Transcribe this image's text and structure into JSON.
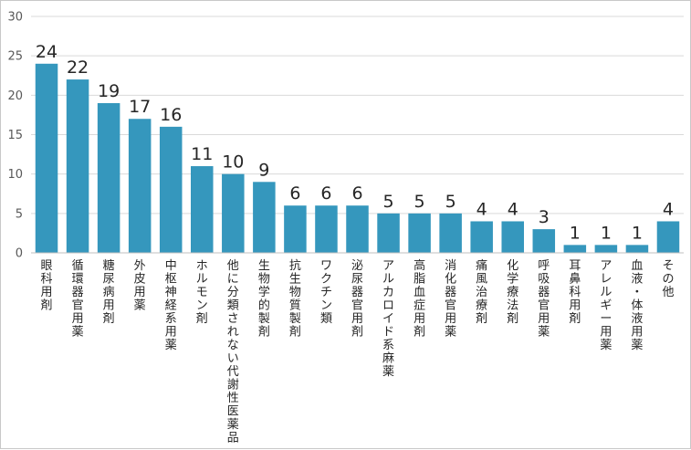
{
  "chart_data": {
    "type": "bar",
    "title": "",
    "xlabel": "",
    "ylabel": "",
    "ylim": [
      0,
      30
    ],
    "yticks": [
      0,
      5,
      10,
      15,
      20,
      25,
      30
    ],
    "grid": true,
    "bar_color": "#3597bd",
    "categories": [
      "眼科用剤",
      "循環器官用薬",
      "糖尿病用剤",
      "外皮用薬",
      "中枢神経系用薬",
      "ホルモン剤",
      "他に分類されない代謝性医薬品",
      "生物学的製剤",
      "抗生物質製剤",
      "ワクチン類",
      "泌尿器官用剤",
      "アルカロイド系麻薬",
      "高脂血症用剤",
      "消化器官用薬",
      "痛風治療剤",
      "化学療法剤",
      "呼吸器官用薬",
      "耳鼻科用剤",
      "アレルギー用薬",
      "血液・体液用薬",
      "その他"
    ],
    "values": [
      24,
      22,
      19,
      17,
      16,
      11,
      10,
      9,
      6,
      6,
      6,
      5,
      5,
      5,
      4,
      4,
      3,
      1,
      1,
      1,
      4
    ]
  }
}
